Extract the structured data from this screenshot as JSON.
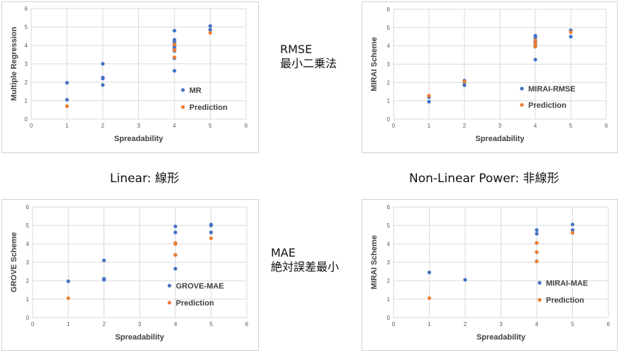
{
  "labels": {
    "rmse": "RMSE",
    "rmse_jp": "最小二乗法",
    "mae": "MAE",
    "mae_jp": "絶対誤差最小",
    "linear": "Linear: 線形",
    "nonlinear": "Non-Linear Power: 非線形"
  },
  "colors": {
    "series": "#4472C4",
    "prediction": "#ED7D31"
  },
  "chart_data": [
    {
      "type": "scatter",
      "xlabel": "Spreadability",
      "ylabel": "Multiple Regression",
      "xlim": [
        0,
        6
      ],
      "ylim": [
        0,
        6
      ],
      "xticks": [
        0,
        1,
        2,
        3,
        4,
        5,
        6
      ],
      "yticks": [
        0,
        1,
        2,
        3,
        4,
        5,
        6
      ],
      "grid": true,
      "legend": "inside-right",
      "series": [
        {
          "name": "MR",
          "color": "#4472C4",
          "points": [
            [
              1,
              1.97
            ],
            [
              1,
              1.05
            ],
            [
              2,
              3.0
            ],
            [
              2,
              2.25
            ],
            [
              2,
              2.2
            ],
            [
              2,
              1.85
            ],
            [
              4,
              4.8
            ],
            [
              4,
              4.3
            ],
            [
              4,
              4.2
            ],
            [
              4,
              4.1
            ],
            [
              4,
              4.0
            ],
            [
              4,
              3.95
            ],
            [
              4,
              3.9
            ],
            [
              4,
              3.8
            ],
            [
              4,
              3.7
            ],
            [
              4,
              3.3
            ],
            [
              4,
              2.62
            ],
            [
              5,
              5.05
            ],
            [
              5,
              4.85
            ]
          ]
        },
        {
          "name": "Prediction",
          "color": "#ED7D31",
          "points": [
            [
              1,
              0.7
            ],
            [
              4,
              4.05
            ],
            [
              4,
              3.75
            ],
            [
              4,
              3.35
            ],
            [
              5,
              4.68
            ]
          ]
        }
      ]
    },
    {
      "type": "scatter",
      "xlabel": "Spreadability",
      "ylabel": "MIRAI Scheme",
      "xlim": [
        0,
        6
      ],
      "ylim": [
        0,
        6
      ],
      "xticks": [
        0,
        1,
        2,
        3,
        4,
        5,
        6
      ],
      "yticks": [
        0,
        1,
        2,
        3,
        4,
        5,
        6
      ],
      "grid": true,
      "legend": "inside-right",
      "series": [
        {
          "name": "MIRAI-RMSE",
          "color": "#4472C4",
          "points": [
            [
              1,
              0.95
            ],
            [
              1,
              1.2
            ],
            [
              2,
              2.1
            ],
            [
              2,
              2.0
            ],
            [
              2,
              1.85
            ],
            [
              4,
              4.55
            ],
            [
              4,
              4.45
            ],
            [
              4,
              4.3
            ],
            [
              4,
              4.2
            ],
            [
              4,
              4.05
            ],
            [
              4,
              3.95
            ],
            [
              4,
              3.25
            ],
            [
              5,
              4.85
            ],
            [
              5,
              4.5
            ]
          ]
        },
        {
          "name": "Prediction",
          "color": "#ED7D31",
          "points": [
            [
              1,
              1.28
            ],
            [
              2,
              2.05
            ],
            [
              4,
              4.3
            ],
            [
              4,
              4.1
            ],
            [
              4,
              3.95
            ],
            [
              5,
              4.75
            ]
          ]
        }
      ]
    },
    {
      "type": "scatter",
      "xlabel": "Spreadability",
      "ylabel": "GROVE Scheme",
      "xlim": [
        0,
        6
      ],
      "ylim": [
        0,
        6
      ],
      "xticks": [
        0,
        1,
        2,
        3,
        4,
        5,
        6
      ],
      "yticks": [
        0,
        1,
        2,
        3,
        4,
        5,
        6
      ],
      "grid": true,
      "legend": "inside-right",
      "series": [
        {
          "name": "GROVE-MAE",
          "color": "#4472C4",
          "points": [
            [
              1,
              1.97
            ],
            [
              2,
              3.1
            ],
            [
              2,
              2.1
            ],
            [
              2,
              2.05
            ],
            [
              4,
              4.95
            ],
            [
              4,
              4.62
            ],
            [
              4,
              4.0
            ],
            [
              4,
              3.4
            ],
            [
              4,
              2.65
            ],
            [
              5,
              5.05
            ],
            [
              5,
              5.0
            ],
            [
              5,
              4.62
            ]
          ]
        },
        {
          "name": "Prediction",
          "color": "#ED7D31",
          "points": [
            [
              1,
              1.05
            ],
            [
              4,
              4.05
            ],
            [
              4,
              4.0
            ],
            [
              4,
              3.4
            ],
            [
              5,
              4.3
            ]
          ]
        }
      ]
    },
    {
      "type": "scatter",
      "xlabel": "Spreadability",
      "ylabel": "MIRAI Scheme",
      "xlim": [
        0,
        6
      ],
      "ylim": [
        0,
        6
      ],
      "xticks": [
        0,
        1,
        2,
        3,
        4,
        5,
        6
      ],
      "yticks": [
        0,
        1,
        2,
        3,
        4,
        5,
        6
      ],
      "grid": true,
      "legend": "inside-right",
      "series": [
        {
          "name": "MIRAI-MAE",
          "color": "#4472C4",
          "points": [
            [
              1,
              2.45
            ],
            [
              2,
              2.05
            ],
            [
              4,
              4.75
            ],
            [
              4,
              4.55
            ],
            [
              4,
              4.05
            ],
            [
              4,
              3.55
            ],
            [
              4,
              3.05
            ],
            [
              5,
              5.05
            ],
            [
              5,
              4.75
            ]
          ]
        },
        {
          "name": "Prediction",
          "color": "#ED7D31",
          "points": [
            [
              1,
              1.05
            ],
            [
              4,
              4.05
            ],
            [
              4,
              3.55
            ],
            [
              4,
              3.05
            ],
            [
              5,
              4.6
            ]
          ]
        }
      ]
    }
  ]
}
